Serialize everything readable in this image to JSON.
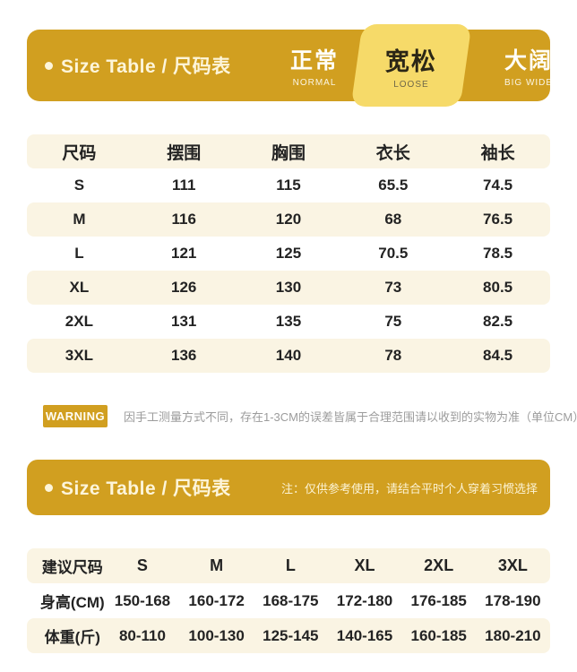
{
  "colors": {
    "gold": "#D19F20",
    "active_tab_yellow": "#F6DA69",
    "stripe_cream": "#FAF4E3",
    "text_dark": "#232323",
    "note_gray": "#9C9C9C",
    "title_cream": "#FDF5DA"
  },
  "header": {
    "title": "Size Table / 尺码表",
    "fits": [
      {
        "zh": "正常",
        "en": "NORMAL",
        "active": false
      },
      {
        "zh": "宽松",
        "en": "LOOSE",
        "active": true
      },
      {
        "zh": "大阔",
        "en": "BIG WIDE",
        "active": false
      }
    ]
  },
  "size_table": {
    "columns": [
      "尺码",
      "摆围",
      "胸围",
      "衣长",
      "袖长"
    ],
    "rows": [
      {
        "size": "S",
        "values": [
          "111",
          "115",
          "65.5",
          "74.5"
        ]
      },
      {
        "size": "M",
        "values": [
          "116",
          "120",
          "68",
          "76.5"
        ]
      },
      {
        "size": "L",
        "values": [
          "121",
          "125",
          "70.5",
          "78.5"
        ]
      },
      {
        "size": "XL",
        "values": [
          "126",
          "130",
          "73",
          "80.5"
        ]
      },
      {
        "size": "2XL",
        "values": [
          "131",
          "135",
          "75",
          "82.5"
        ]
      },
      {
        "size": "3XL",
        "values": [
          "136",
          "140",
          "78",
          "84.5"
        ]
      }
    ]
  },
  "warning": {
    "badge": "WARNING",
    "text": "因手工测量方式不同，存在1-3CM的误差皆属于合理范围请以收到的实物为准（单位CM）"
  },
  "header2": {
    "title": "Size Table / 尺码表",
    "note": "注：仅供参考使用，请结合平时个人穿着习惯选择"
  },
  "suggest_table": {
    "header": [
      "建议尺码",
      "S",
      "M",
      "L",
      "XL",
      "2XL",
      "3XL"
    ],
    "rows": [
      {
        "label": "身高(CM)",
        "values": [
          "150-168",
          "160-172",
          "168-175",
          "172-180",
          "176-185",
          "178-190"
        ]
      },
      {
        "label": "体重(斤)",
        "values": [
          "80-110",
          "100-130",
          "125-145",
          "140-165",
          "160-185",
          "180-210"
        ]
      }
    ]
  }
}
